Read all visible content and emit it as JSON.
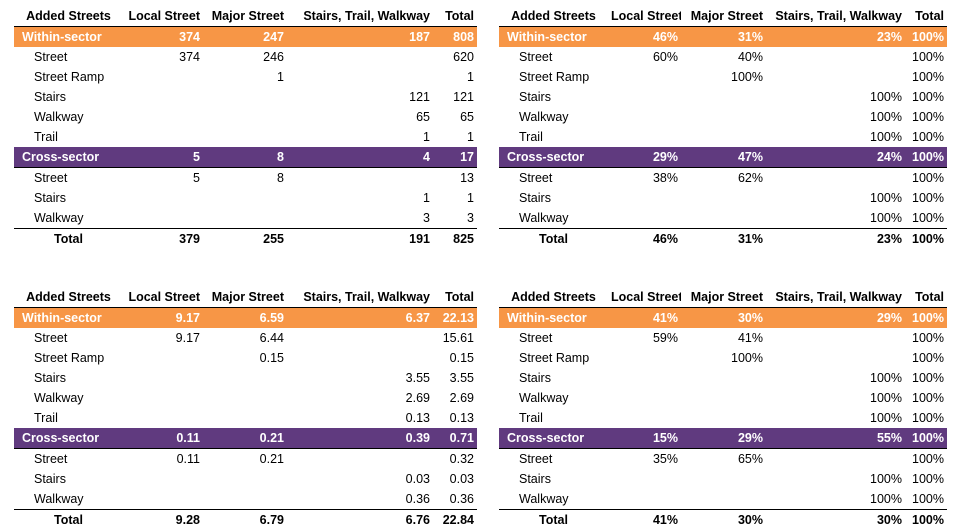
{
  "colors": {
    "within_sector": "#f79646",
    "cross_sector": "#603a7f",
    "group_text": "#ffffff"
  },
  "tables": [
    {
      "headers": [
        "Added Streets",
        "Local Street",
        "Major Street",
        "Stairs, Trail, Walkway",
        "Total"
      ],
      "sections": [
        {
          "kind": "within",
          "row": [
            "Within-sector",
            "374",
            "247",
            "187",
            "808"
          ],
          "subrows": [
            [
              "Street",
              "374",
              "246",
              "",
              "620"
            ],
            [
              "Street Ramp",
              "",
              "1",
              "",
              "1"
            ],
            [
              "Stairs",
              "",
              "",
              "121",
              "121"
            ],
            [
              "Walkway",
              "",
              "",
              "65",
              "65"
            ],
            [
              "Trail",
              "",
              "",
              "1",
              "1"
            ]
          ]
        },
        {
          "kind": "cross",
          "row": [
            "Cross-sector",
            "5",
            "8",
            "4",
            "17"
          ],
          "subrows": [
            [
              "Street",
              "5",
              "8",
              "",
              "13"
            ],
            [
              "Stairs",
              "",
              "",
              "1",
              "1"
            ],
            [
              "Walkway",
              "",
              "",
              "3",
              "3"
            ]
          ]
        }
      ],
      "total": [
        "Total",
        "379",
        "255",
        "191",
        "825"
      ]
    },
    {
      "headers": [
        "Added Streets",
        "Local Street",
        "Major Street",
        "Stairs, Trail, Walkway",
        "Total"
      ],
      "sections": [
        {
          "kind": "within",
          "row": [
            "Within-sector",
            "46%",
            "31%",
            "23%",
            "100%"
          ],
          "subrows": [
            [
              "Street",
              "60%",
              "40%",
              "",
              "100%"
            ],
            [
              "Street Ramp",
              "",
              "100%",
              "",
              "100%"
            ],
            [
              "Stairs",
              "",
              "",
              "100%",
              "100%"
            ],
            [
              "Walkway",
              "",
              "",
              "100%",
              "100%"
            ],
            [
              "Trail",
              "",
              "",
              "100%",
              "100%"
            ]
          ]
        },
        {
          "kind": "cross",
          "row": [
            "Cross-sector",
            "29%",
            "47%",
            "24%",
            "100%"
          ],
          "subrows": [
            [
              "Street",
              "38%",
              "62%",
              "",
              "100%"
            ],
            [
              "Stairs",
              "",
              "",
              "100%",
              "100%"
            ],
            [
              "Walkway",
              "",
              "",
              "100%",
              "100%"
            ]
          ]
        }
      ],
      "total": [
        "Total",
        "46%",
        "31%",
        "23%",
        "100%"
      ]
    },
    {
      "headers": [
        "Added Streets",
        "Local Street",
        "Major Street",
        "Stairs, Trail, Walkway",
        "Total"
      ],
      "sections": [
        {
          "kind": "within",
          "row": [
            "Within-sector",
            "9.17",
            "6.59",
            "6.37",
            "22.13"
          ],
          "subrows": [
            [
              "Street",
              "9.17",
              "6.44",
              "",
              "15.61"
            ],
            [
              "Street Ramp",
              "",
              "0.15",
              "",
              "0.15"
            ],
            [
              "Stairs",
              "",
              "",
              "3.55",
              "3.55"
            ],
            [
              "Walkway",
              "",
              "",
              "2.69",
              "2.69"
            ],
            [
              "Trail",
              "",
              "",
              "0.13",
              "0.13"
            ]
          ]
        },
        {
          "kind": "cross",
          "row": [
            "Cross-sector",
            "0.11",
            "0.21",
            "0.39",
            "0.71"
          ],
          "subrows": [
            [
              "Street",
              "0.11",
              "0.21",
              "",
              "0.32"
            ],
            [
              "Stairs",
              "",
              "",
              "0.03",
              "0.03"
            ],
            [
              "Walkway",
              "",
              "",
              "0.36",
              "0.36"
            ]
          ]
        }
      ],
      "total": [
        "Total",
        "9.28",
        "6.79",
        "6.76",
        "22.84"
      ]
    },
    {
      "headers": [
        "Added Streets",
        "Local Street",
        "Major Street",
        "Stairs, Trail, Walkway",
        "Total"
      ],
      "sections": [
        {
          "kind": "within",
          "row": [
            "Within-sector",
            "41%",
            "30%",
            "29%",
            "100%"
          ],
          "subrows": [
            [
              "Street",
              "59%",
              "41%",
              "",
              "100%"
            ],
            [
              "Street Ramp",
              "",
              "100%",
              "",
              "100%"
            ],
            [
              "Stairs",
              "",
              "",
              "100%",
              "100%"
            ],
            [
              "Walkway",
              "",
              "",
              "100%",
              "100%"
            ],
            [
              "Trail",
              "",
              "",
              "100%",
              "100%"
            ]
          ]
        },
        {
          "kind": "cross",
          "row": [
            "Cross-sector",
            "15%",
            "29%",
            "55%",
            "100%"
          ],
          "subrows": [
            [
              "Street",
              "35%",
              "65%",
              "",
              "100%"
            ],
            [
              "Stairs",
              "",
              "",
              "100%",
              "100%"
            ],
            [
              "Walkway",
              "",
              "",
              "100%",
              "100%"
            ]
          ]
        }
      ],
      "total": [
        "Total",
        "41%",
        "30%",
        "30%",
        "100%"
      ]
    }
  ]
}
